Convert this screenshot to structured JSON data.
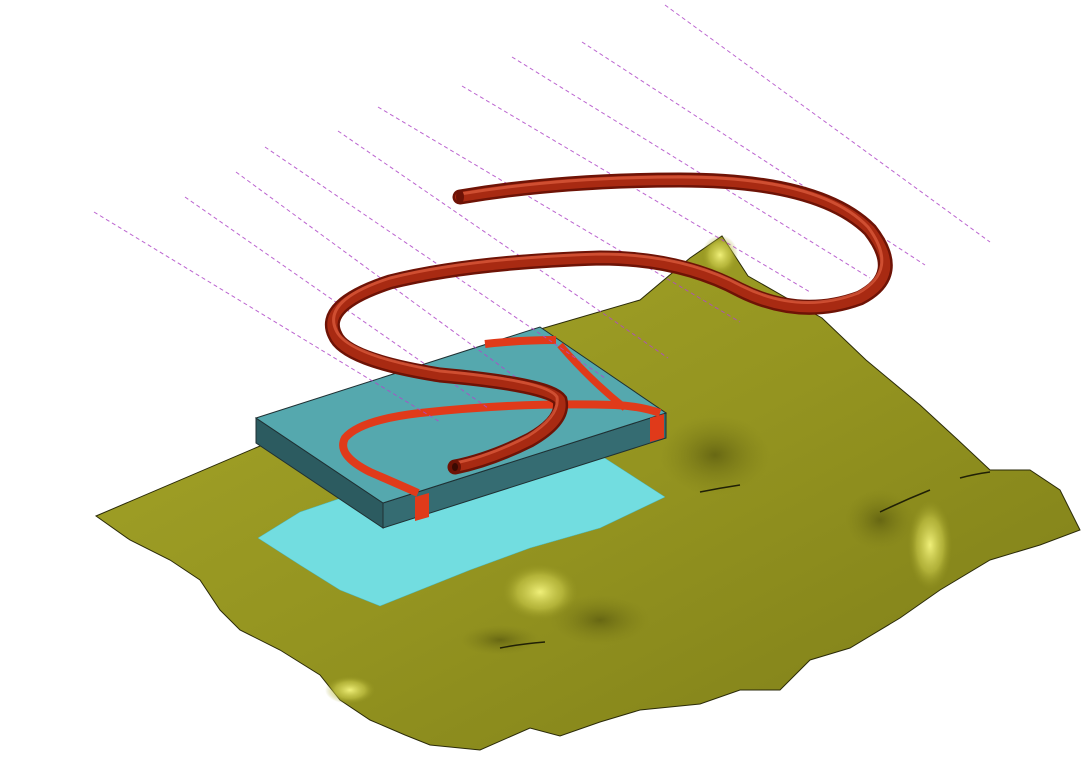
{
  "scene": {
    "background": "#ffffff",
    "colors": {
      "terrain_base": "#9a9a24",
      "terrain_shadow": "#6f6f16",
      "terrain_highlight": "#e8e870",
      "projection_region": "#72dde0",
      "block_top": "#55a8ae",
      "block_front": "#2c5b60",
      "block_side": "#356c72",
      "block_outline": "#1f3033",
      "curve_on_block": "#e03a1a",
      "tube_dark": "#6e1306",
      "tube_mid": "#a82a12",
      "tube_light": "#d8583a",
      "projection_lines": "#b04ac8"
    },
    "objects": [
      "terrain-surface",
      "projection-region",
      "rectangular-block",
      "projected-curve",
      "spiral-tube",
      "projection-lines"
    ]
  }
}
